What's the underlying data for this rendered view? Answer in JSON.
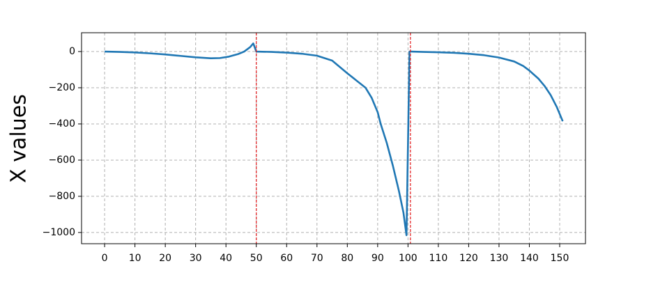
{
  "chart_data": {
    "type": "line",
    "ylabel": "X values",
    "x": [
      0,
      5,
      10,
      15,
      20,
      25,
      30,
      35,
      38,
      41,
      44,
      46,
      48,
      49,
      50,
      52,
      55,
      60,
      65,
      70,
      75,
      80,
      83,
      86,
      88,
      90,
      91,
      93,
      95,
      97,
      98.5,
      99.5,
      100.5,
      101,
      105,
      110,
      115,
      120,
      125,
      130,
      135,
      138,
      140,
      143,
      145,
      147,
      149,
      151
    ],
    "series": [
      {
        "color": "#1f77b4",
        "values": [
          0,
          -2,
          -5,
          -10,
          -16,
          -24,
          -32,
          -37,
          -36,
          -28,
          -14,
          0,
          25,
          45,
          0,
          -1,
          -2,
          -6,
          -12,
          -23,
          -50,
          -120,
          -160,
          -200,
          -255,
          -335,
          -400,
          -505,
          -630,
          -770,
          -890,
          -1015,
          0,
          0,
          -2,
          -4,
          -7,
          -12,
          -20,
          -33,
          -55,
          -80,
          -105,
          -150,
          -190,
          -240,
          -305,
          -385
        ]
      }
    ],
    "xlim": [
      -7.6,
      158.5
    ],
    "ylim": [
      -1062,
      104
    ],
    "xticks": [
      0,
      10,
      20,
      30,
      40,
      50,
      60,
      70,
      80,
      90,
      100,
      110,
      120,
      130,
      140,
      150
    ],
    "yticks": [
      0,
      {
        "value": -200,
        "label": "−200"
      },
      {
        "value": -400,
        "label": "−400"
      },
      {
        "value": -600,
        "label": "−600"
      },
      {
        "value": -800,
        "label": "−800"
      },
      {
        "value": -1000,
        "label": "−1000"
      }
    ],
    "grid": true,
    "vlines": [
      50,
      100.8
    ],
    "vline_color": "#e31a1c"
  }
}
